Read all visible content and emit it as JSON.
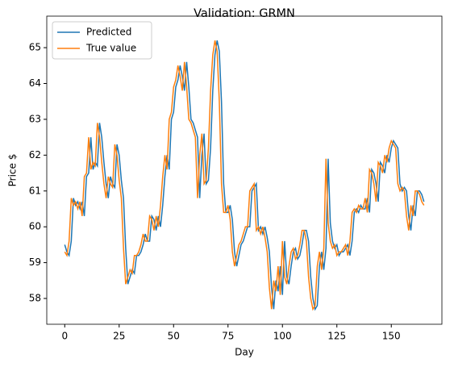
{
  "chart_data": {
    "type": "line",
    "title": "Validation: GRMN",
    "x_label": "Day",
    "y_label": "Price $",
    "xlim": [
      -8.25,
      173.25
    ],
    "xticks": [
      0,
      25,
      50,
      75,
      100,
      125,
      150
    ],
    "ylim": [
      57.28,
      65.88
    ],
    "yticks": [
      58,
      59,
      60,
      61,
      62,
      63,
      64,
      65
    ],
    "legend": "upper left",
    "series": [
      {
        "name": "Predicted",
        "color": "#1f77b4",
        "values": [
          59.5,
          59.3,
          59.2,
          59.6,
          60.8,
          60.6,
          60.7,
          60.5,
          60.7,
          60.3,
          61.4,
          61.5,
          62.5,
          61.6,
          61.8,
          61.7,
          62.9,
          62.5,
          61.8,
          61.2,
          60.8,
          61.4,
          61.2,
          61.1,
          62.3,
          62.0,
          61.3,
          60.8,
          59.4,
          58.4,
          58.6,
          58.8,
          58.7,
          59.2,
          59.2,
          59.3,
          59.5,
          59.8,
          59.6,
          59.6,
          60.3,
          60.2,
          59.9,
          60.3,
          60.0,
          60.6,
          61.4,
          62.0,
          61.6,
          63.0,
          63.2,
          63.9,
          64.1,
          64.5,
          64.2,
          63.8,
          64.6,
          63.9,
          63.0,
          62.9,
          62.7,
          62.5,
          60.8,
          62.0,
          62.6,
          61.2,
          61.3,
          62.2,
          63.8,
          64.8,
          65.2,
          64.9,
          63.5,
          61.2,
          60.4,
          60.4,
          60.6,
          60.2,
          59.3,
          58.9,
          59.2,
          59.5,
          59.6,
          59.8,
          60.0,
          60.0,
          61.0,
          61.1,
          61.2,
          59.9,
          60.0,
          59.8,
          60.0,
          59.7,
          59.3,
          58.3,
          57.7,
          58.5,
          58.2,
          58.9,
          58.1,
          59.6,
          58.6,
          58.4,
          58.9,
          59.3,
          59.4,
          59.1,
          59.2,
          59.5,
          59.9,
          59.9,
          59.6,
          58.6,
          58.0,
          57.7,
          57.8,
          58.9,
          59.3,
          58.8,
          59.4,
          61.9,
          60.1,
          59.6,
          59.4,
          59.5,
          59.2,
          59.3,
          59.3,
          59.4,
          59.5,
          59.2,
          59.6,
          60.4,
          60.5,
          60.4,
          60.6,
          60.5,
          60.5,
          60.8,
          60.4,
          61.6,
          61.5,
          61.2,
          60.7,
          61.8,
          61.7,
          61.5,
          62.0,
          61.8,
          62.2,
          62.4,
          62.3,
          62.2,
          61.2,
          61.0,
          61.1,
          61.0,
          60.3,
          59.9,
          60.6,
          60.3,
          61.0,
          61.0,
          60.9,
          60.7
        ]
      },
      {
        "name": "True value",
        "color": "#ff7f0e",
        "values": [
          59.3,
          59.2,
          59.6,
          60.8,
          60.6,
          60.7,
          60.5,
          60.7,
          60.3,
          61.4,
          61.5,
          62.5,
          61.6,
          61.8,
          61.7,
          62.9,
          62.5,
          61.8,
          61.2,
          60.8,
          61.4,
          61.2,
          61.1,
          62.3,
          62.0,
          61.3,
          60.8,
          59.4,
          58.4,
          58.6,
          58.8,
          58.7,
          59.2,
          59.2,
          59.3,
          59.5,
          59.8,
          59.6,
          59.6,
          60.3,
          60.2,
          59.9,
          60.3,
          60.0,
          60.6,
          61.4,
          62.0,
          61.6,
          63.0,
          63.2,
          63.9,
          64.1,
          64.5,
          64.2,
          63.8,
          64.6,
          63.9,
          63.0,
          62.9,
          62.7,
          62.5,
          60.8,
          62.0,
          62.6,
          61.2,
          61.3,
          62.2,
          63.8,
          64.8,
          65.2,
          64.9,
          63.5,
          61.2,
          60.4,
          60.4,
          60.6,
          60.2,
          59.3,
          58.9,
          59.2,
          59.5,
          59.6,
          59.8,
          60.0,
          60.0,
          61.0,
          61.1,
          61.2,
          59.9,
          60.0,
          59.8,
          60.0,
          59.7,
          59.3,
          58.3,
          57.7,
          58.5,
          58.2,
          58.9,
          58.1,
          59.6,
          58.6,
          58.4,
          58.9,
          59.3,
          59.4,
          59.1,
          59.2,
          59.5,
          59.9,
          59.9,
          59.6,
          58.6,
          58.0,
          57.7,
          57.8,
          58.9,
          59.3,
          58.8,
          59.4,
          61.9,
          60.1,
          59.6,
          59.4,
          59.5,
          59.2,
          59.3,
          59.3,
          59.4,
          59.5,
          59.2,
          59.6,
          60.4,
          60.5,
          60.4,
          60.6,
          60.5,
          60.5,
          60.8,
          60.4,
          61.6,
          61.5,
          61.2,
          60.7,
          61.8,
          61.7,
          61.5,
          62.0,
          61.8,
          62.2,
          62.4,
          62.3,
          62.2,
          61.2,
          61.0,
          61.1,
          61.0,
          60.3,
          59.9,
          60.6,
          60.3,
          61.0,
          61.0,
          60.9,
          60.7,
          60.6
        ]
      }
    ]
  }
}
